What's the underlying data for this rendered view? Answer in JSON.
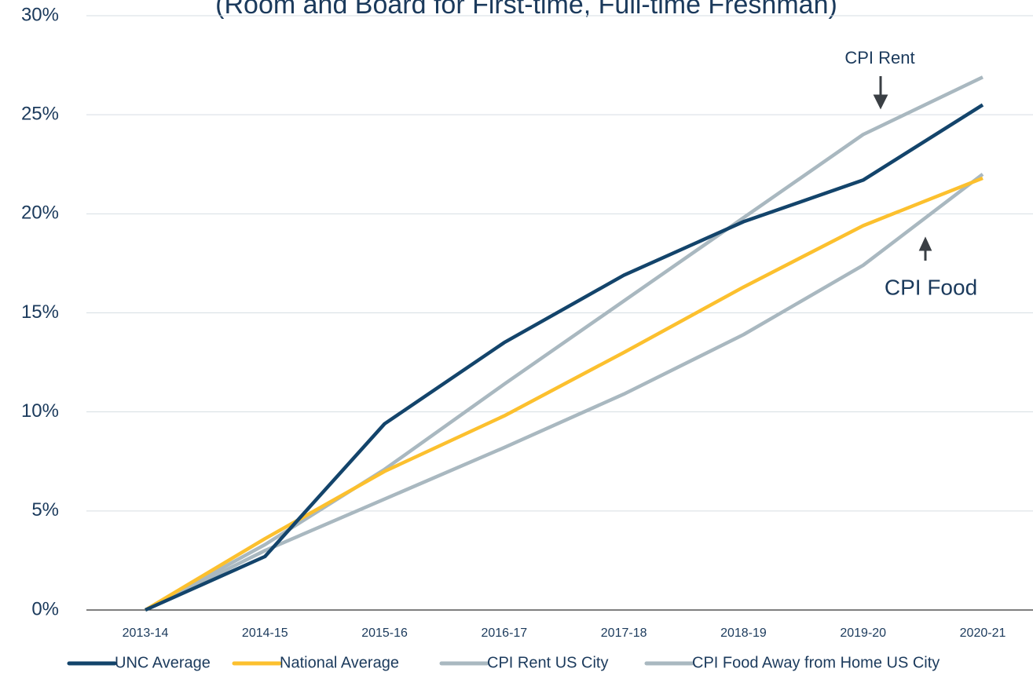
{
  "chart_data": {
    "type": "line",
    "subtitle": "(Room and Board for First-time, Full-time Freshman)",
    "categories": [
      "2013-14",
      "2014-15",
      "2015-16",
      "2016-17",
      "2017-18",
      "2018-19",
      "2019-20",
      "2020-21"
    ],
    "series": [
      {
        "name": "UNC Average",
        "color": "#13446b",
        "values": [
          0,
          2.7,
          9.4,
          13.5,
          16.9,
          19.6,
          21.7,
          25.5
        ]
      },
      {
        "name": "National Average",
        "color": "#fcc02e",
        "values": [
          0,
          3.6,
          7.0,
          9.8,
          13.0,
          16.3,
          19.4,
          21.8
        ]
      },
      {
        "name": "CPI Rent US City",
        "color": "#a9b8c0",
        "values": [
          0,
          3.3,
          7.1,
          11.4,
          15.6,
          19.8,
          24.0,
          26.9
        ]
      },
      {
        "name": "CPI Food Away from Home US City",
        "color": "#a9b8c0",
        "values": [
          0,
          3.0,
          5.6,
          8.2,
          10.9,
          13.9,
          17.4,
          22.0
        ]
      }
    ],
    "ylim": [
      0,
      30
    ],
    "yticks": [
      {
        "value": 0,
        "label": "0%"
      },
      {
        "value": 5,
        "label": "5%"
      },
      {
        "value": 10,
        "label": "10%"
      },
      {
        "value": 15,
        "label": "15%"
      },
      {
        "value": 20,
        "label": "20%"
      },
      {
        "value": 25,
        "label": "25%"
      },
      {
        "value": 30,
        "label": "30%"
      }
    ],
    "grid": true,
    "annotations": [
      "CPI Rent",
      "CPI Food"
    ],
    "legend": "bottom"
  }
}
